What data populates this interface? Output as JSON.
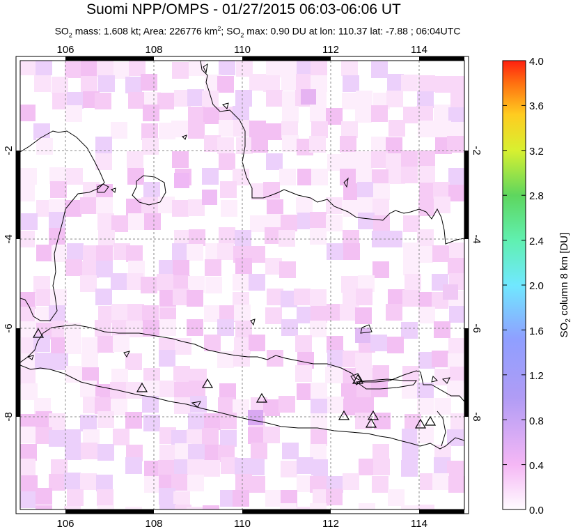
{
  "header": {
    "title": "Suomi NPP/OMPS - 01/27/2015 06:03-06:06 UT",
    "so2_prefix": "SO",
    "so2_sub": "2",
    "mass_text": " mass: 1.608 kt; Area: 226776 km",
    "area_sup": "2",
    "max_prefix": "; SO",
    "max_sub": "2",
    "max_text": " max: 0.90 DU at lon: 110.37 lat: -7.88 ; 06:04UTC"
  },
  "map": {
    "lon_ticks": [
      "106",
      "108",
      "110",
      "112",
      "114"
    ],
    "lat_ticks": [
      "-2",
      "-4",
      "-6",
      "-8"
    ],
    "lon_range": [
      105,
      115
    ],
    "lat_range": [
      -10,
      -0.5
    ],
    "volcano_count": 10
  },
  "colorbar": {
    "ticks": [
      "4.0",
      "3.6",
      "3.2",
      "2.8",
      "2.4",
      "2.0",
      "1.6",
      "1.2",
      "0.8",
      "0.4",
      "0.0"
    ],
    "label_prefix": "SO",
    "label_sub": "2",
    "label_suffix": " column 8 km [DU]",
    "range": [
      0,
      4
    ],
    "colors": [
      "#fffcff",
      "#f5b7f5",
      "#c9a3f0",
      "#8f8fff",
      "#70dfff",
      "#6ff0c0",
      "#5ed65e",
      "#d4f030",
      "#ffd020",
      "#ff8c10",
      "#ff2a10"
    ]
  }
}
